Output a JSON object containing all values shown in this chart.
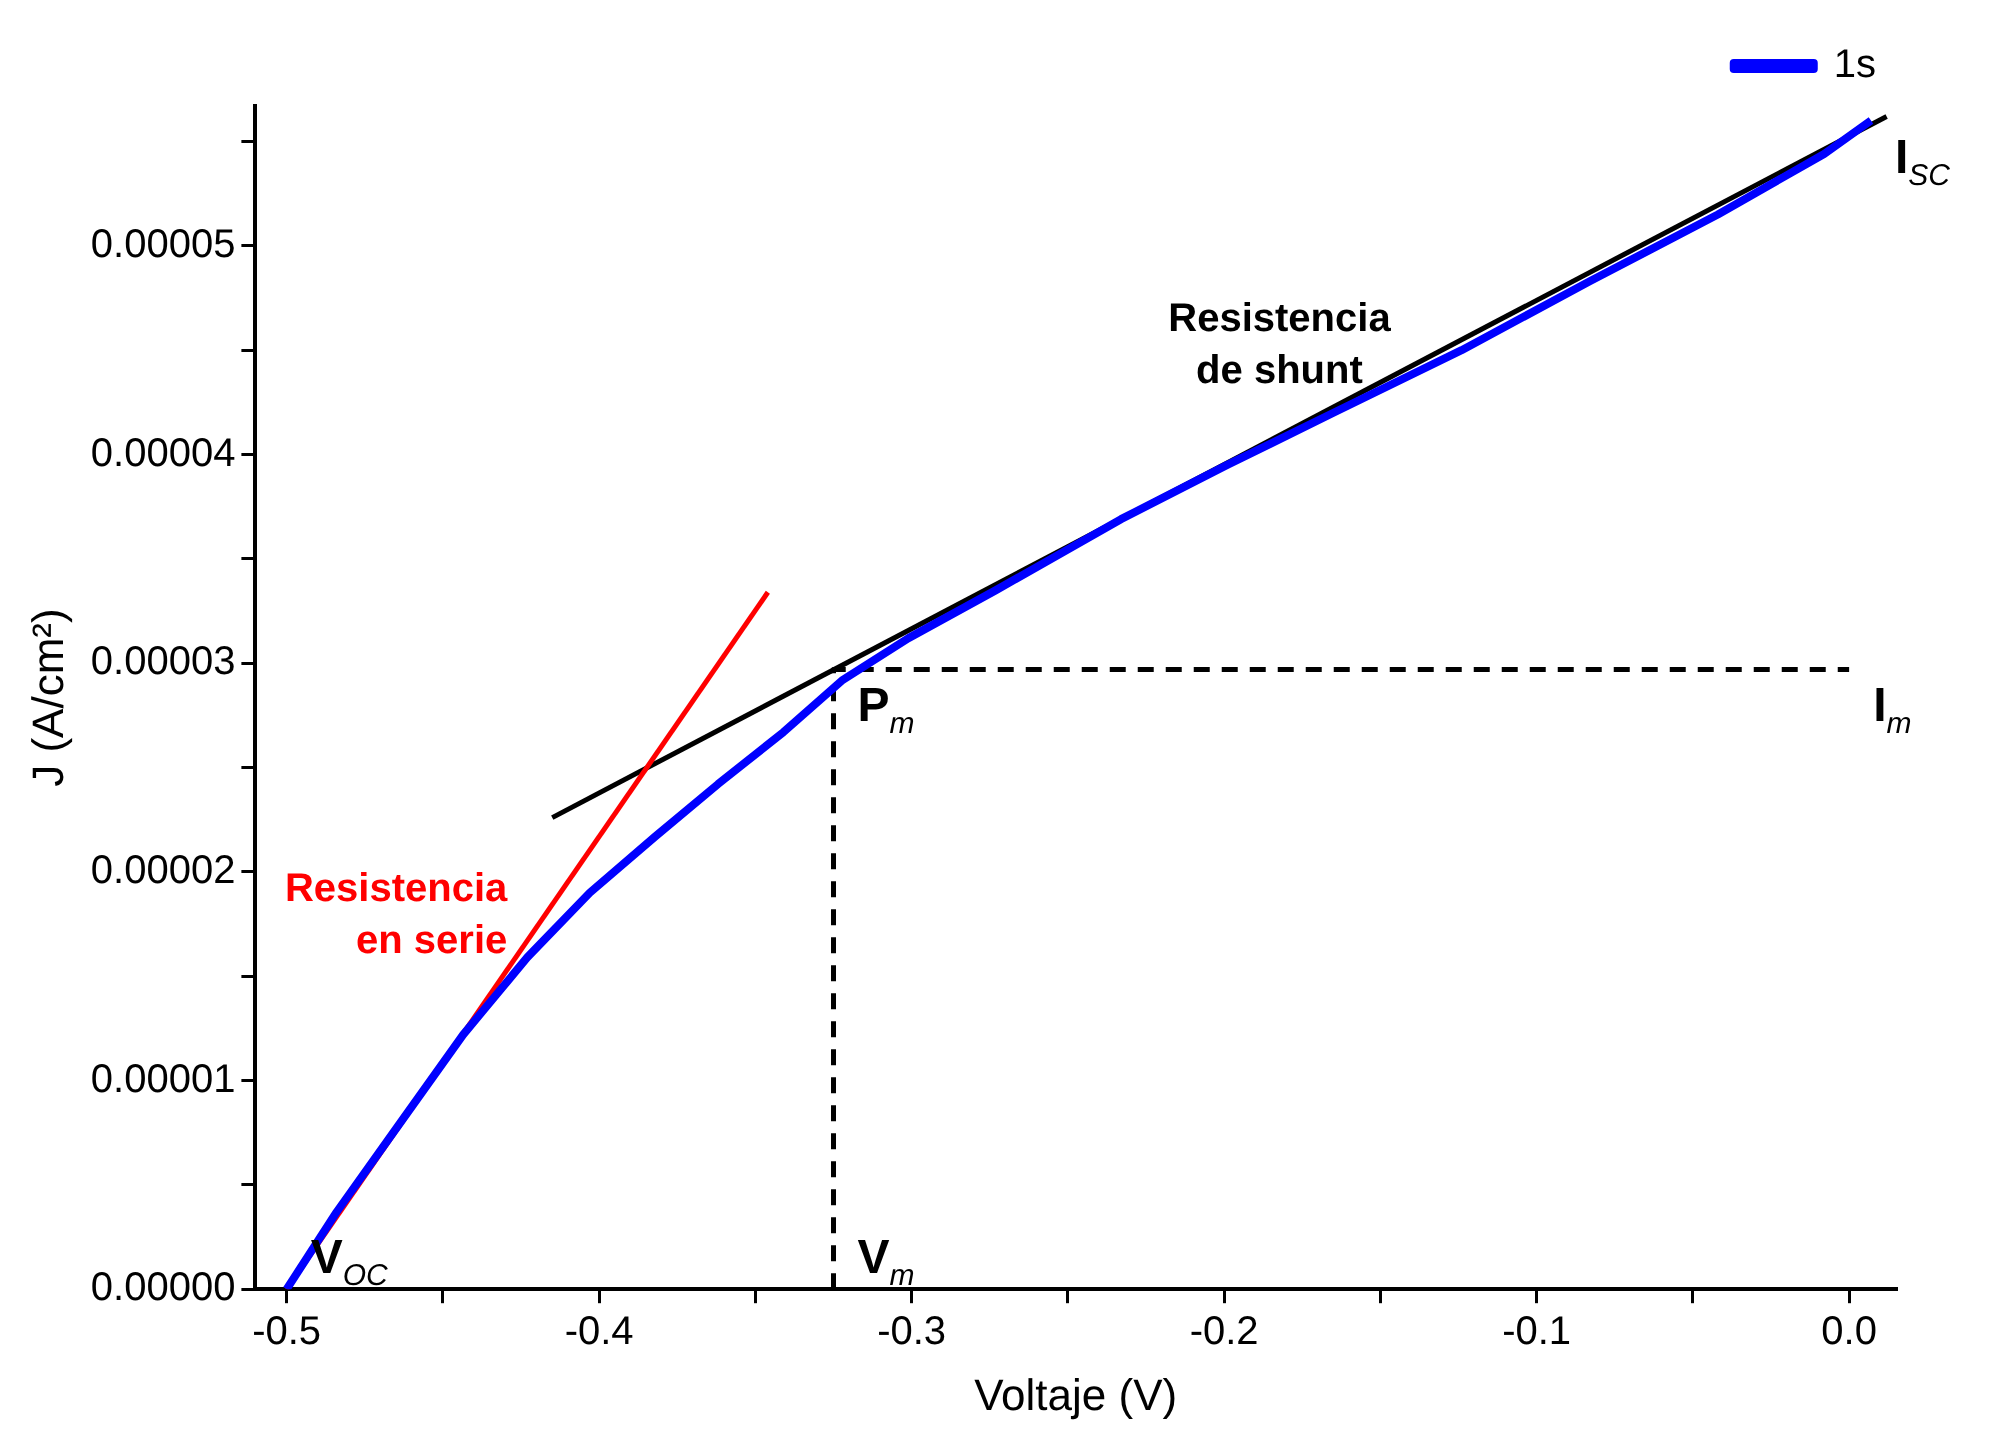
{
  "chart_data": {
    "type": "line",
    "xlabel": "Voltaje (V)",
    "ylabel": "J (A/cm²)",
    "xlim": [
      -0.51,
      0.015
    ],
    "xticks": [
      -0.5,
      {
        "value": -0.45,
        "label": null
      },
      -0.4,
      {
        "value": -0.35,
        "label": null
      },
      -0.3,
      {
        "value": -0.25,
        "label": null
      },
      -0.2,
      {
        "value": -0.15,
        "label": null
      },
      -0.1,
      {
        "value": -0.05,
        "label": null
      },
      {
        "value": 0,
        "label": "0.0"
      }
    ],
    "ylim": [
      0,
      5.67e-05
    ],
    "yticks": [
      {
        "value": 0,
        "label": "0.00000"
      },
      {
        "value": 5e-06,
        "label": null
      },
      {
        "value": 1e-05,
        "label": "0.00001"
      },
      {
        "value": 1.5e-05,
        "label": null
      },
      {
        "value": 2e-05,
        "label": "0.00002"
      },
      {
        "value": 2.5e-05,
        "label": null
      },
      {
        "value": 3e-05,
        "label": "0.00003"
      },
      {
        "value": 3.5e-05,
        "label": null
      },
      {
        "value": 4e-05,
        "label": "0.00004"
      },
      {
        "value": 4.5e-05,
        "label": null
      },
      {
        "value": 5e-05,
        "label": "0.00005"
      },
      {
        "value": 5.5e-05,
        "label": null
      }
    ],
    "grid": false,
    "legend": "top right",
    "marker": "none",
    "series": [
      {
        "name": "1s",
        "color": "#0000ff",
        "x": [
          -0.5,
          -0.484,
          -0.464,
          -0.4435,
          -0.423,
          -0.403,
          -0.382,
          -0.362,
          -0.341,
          -0.322,
          -0.301,
          -0.273,
          -0.233,
          -0.199,
          -0.165,
          -0.124,
          -0.083,
          -0.042,
          -0.008,
          0.007
        ],
        "values": [
          0,
          3.7e-06,
          7.9e-06,
          1.22e-05,
          1.59e-05,
          1.9e-05,
          2.17e-05,
          2.42e-05,
          2.67e-05,
          2.92e-05,
          3.12e-05,
          3.35e-05,
          3.69e-05,
          3.95e-05,
          4.2e-05,
          4.5e-05,
          4.83e-05,
          5.15e-05,
          5.44e-05,
          5.6e-05
        ]
      },
      {
        "name": "Resistencia en serie",
        "type": "line",
        "color": "#ff0000",
        "x": [
          -0.5,
          -0.346
        ],
        "values": [
          0,
          3.34e-05
        ]
      },
      {
        "name": "Resistencia de shunt",
        "type": "line",
        "color": "#000000",
        "x": [
          -0.415,
          0.012
        ],
        "values": [
          2.26e-05,
          5.62e-05
        ]
      },
      {
        "type": "line",
        "color": "#000000",
        "line_style": "dashed",
        "x": [
          -0.325,
          -0.325,
          0
        ],
        "values": [
          0,
          2.97e-05,
          2.97e-05
        ]
      }
    ],
    "annotations": [
      {
        "text": "V$_{OC}$",
        "x": -0.5,
        "y": 0
      },
      {
        "text": "V$_{m}$",
        "x": -0.325,
        "y": 0
      },
      {
        "text": "P$_{m}$",
        "x": -0.325,
        "y": 2.97e-05
      },
      {
        "text": "I$_{m}$",
        "x": 0,
        "y": 2.97e-05
      },
      {
        "text": "I$_{SC}$",
        "x": 0.007,
        "y": 5.6e-05
      }
    ]
  }
}
